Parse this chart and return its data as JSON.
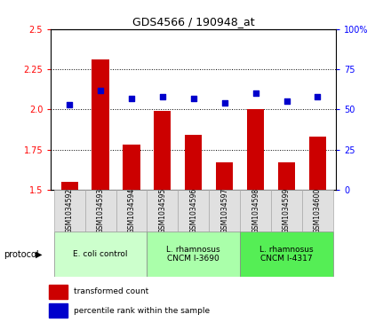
{
  "title": "GDS4566 / 190948_at",
  "samples": [
    "GSM1034592",
    "GSM1034593",
    "GSM1034594",
    "GSM1034595",
    "GSM1034596",
    "GSM1034597",
    "GSM1034598",
    "GSM1034599",
    "GSM1034600"
  ],
  "transformed_count": [
    1.55,
    2.31,
    1.78,
    1.99,
    1.84,
    1.67,
    2.0,
    1.67,
    1.83
  ],
  "percentile_rank": [
    53,
    62,
    57,
    58,
    57,
    54,
    60,
    55,
    58
  ],
  "ylim_left": [
    1.5,
    2.5
  ],
  "ylim_right": [
    0,
    100
  ],
  "yticks_left": [
    1.5,
    1.75,
    2.0,
    2.25,
    2.5
  ],
  "yticks_right": [
    0,
    25,
    50,
    75,
    100
  ],
  "bar_color": "#CC0000",
  "scatter_color": "#0000CC",
  "proto_data": [
    {
      "start": 0,
      "end": 3,
      "label": "E. coli control",
      "color": "#ccffcc"
    },
    {
      "start": 3,
      "end": 6,
      "label": "L. rhamnosus\nCNCM I-3690",
      "color": "#aaffaa"
    },
    {
      "start": 6,
      "end": 9,
      "label": "L. rhamnosus\nCNCM I-4317",
      "color": "#55ee55"
    }
  ],
  "legend_labels": [
    "transformed count",
    "percentile rank within the sample"
  ],
  "legend_colors": [
    "#CC0000",
    "#0000CC"
  ],
  "protocol_label": "protocol"
}
